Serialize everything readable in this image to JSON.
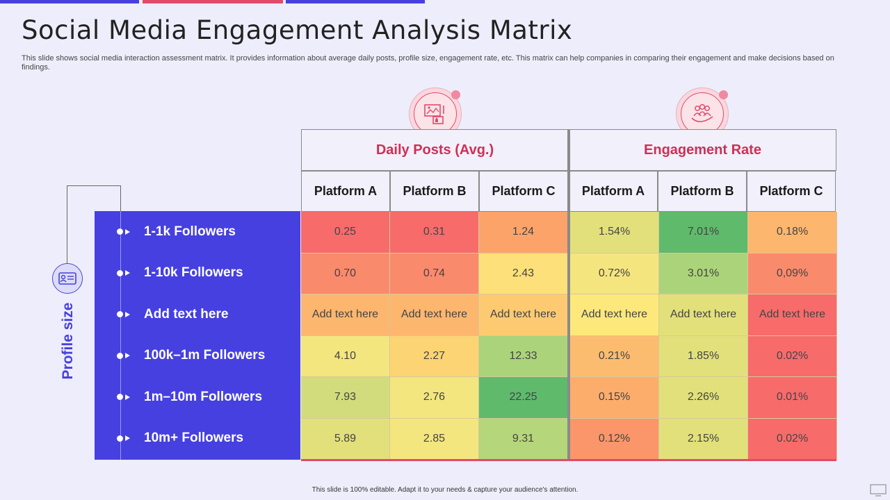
{
  "title": "Social Media Engagement Analysis Matrix",
  "subtitle": "This slide shows social media interaction assessment matrix. It provides information about average daily posts, profile size, engagement rate, etc. This matrix can help companies in comparing their engagement and make decisions based on findings.",
  "footer": "This slide is 100% editable.  Adapt it to your needs & capture your audience's attention.",
  "colors": {
    "accent_blue": "#4640e0",
    "accent_red": "#d12e54",
    "background": "#eeedfb"
  },
  "icons": {
    "daily_posts": "social-media-post-icon",
    "engagement": "people-hand-icon",
    "profile": "profile-card-icon"
  },
  "chart_data": {
    "type": "table",
    "row_axis_label": "Profile size",
    "column_groups": [
      {
        "name": "Daily Posts (Avg.)",
        "columns": [
          "Platform A",
          "Platform B",
          "Platform C"
        ]
      },
      {
        "name": "Engagement Rate",
        "columns": [
          "Platform A",
          "Platform B",
          "Platform C"
        ]
      }
    ],
    "rows": [
      {
        "label": "1-1k Followers",
        "values": [
          "0.25",
          "0.31",
          "1.24",
          "1.54%",
          "7.01%",
          "0.18%"
        ],
        "colors": [
          "#f76b6b",
          "#f76b6b",
          "#fca36a",
          "#e2e07a",
          "#5fba6c",
          "#fcb66e"
        ]
      },
      {
        "label": "1-10k Followers",
        "values": [
          "0.70",
          "0.74",
          "2.43",
          "0.72%",
          "3.01%",
          "0,09%"
        ],
        "colors": [
          "#fa8a6c",
          "#fa8a6c",
          "#fde07a",
          "#f5e57e",
          "#abd47a",
          "#fa8a6c"
        ]
      },
      {
        "label": "Add text here",
        "values": [
          "Add text here",
          "Add text here",
          "Add text here",
          "Add text here",
          "Add text here",
          "Add text here"
        ],
        "colors": [
          "#fcb66e",
          "#fcb66e",
          "#fdca72",
          "#fde87c",
          "#e2e07a",
          "#f76b6b"
        ]
      },
      {
        "label": "100k–1m Followers",
        "values": [
          "4.10",
          "2.27",
          "12.33",
          "0.21%",
          "1.85%",
          "0.02%"
        ],
        "colors": [
          "#f4e67e",
          "#fdd474",
          "#abd47a",
          "#fcbc70",
          "#e2e07a",
          "#f76b6b"
        ]
      },
      {
        "label": "1m–10m Followers",
        "values": [
          "7.93",
          "2.76",
          "22.25",
          "0.15%",
          "2.26%",
          "0.01%"
        ],
        "colors": [
          "#d2dc7c",
          "#f4e67e",
          "#5fba6c",
          "#fcad6c",
          "#e2e07a",
          "#f76b6b"
        ]
      },
      {
        "label": "10m+ Followers",
        "values": [
          "5.89",
          "2.85",
          "9.31",
          "0.12%",
          "2.15%",
          "0.02%"
        ],
        "colors": [
          "#e2e07a",
          "#f4e67e",
          "#b5d67a",
          "#fa966a",
          "#e2e07a",
          "#f76b6b"
        ]
      }
    ]
  }
}
